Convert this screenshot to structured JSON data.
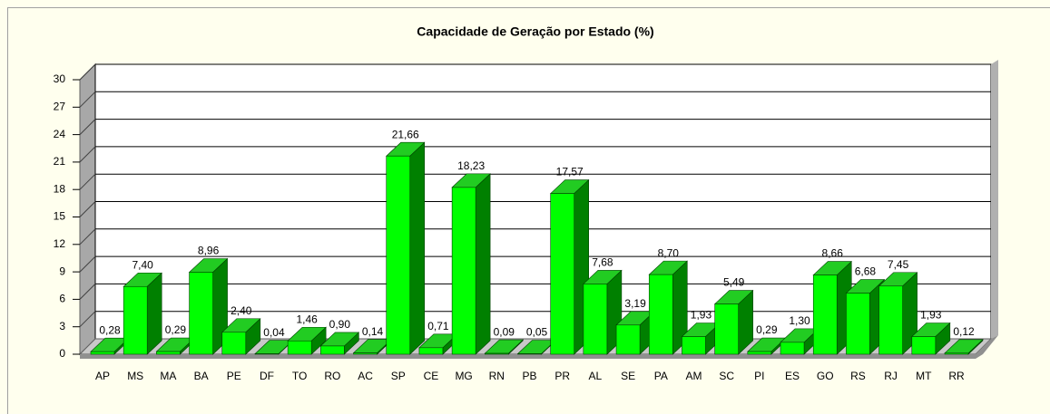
{
  "chart_data": {
    "type": "bar",
    "title": "Capacidade de Geração por Estado (%)",
    "categories": [
      "AP",
      "MS",
      "MA",
      "BA",
      "PE",
      "DF",
      "TO",
      "RO",
      "AC",
      "SP",
      "CE",
      "MG",
      "RN",
      "PB",
      "PR",
      "AL",
      "SE",
      "PA",
      "AM",
      "SC",
      "PI",
      "ES",
      "GO",
      "RS",
      "RJ",
      "MT",
      "RR"
    ],
    "values": [
      0.28,
      7.4,
      0.29,
      8.96,
      2.4,
      0.04,
      1.46,
      0.9,
      0.14,
      21.66,
      0.71,
      18.23,
      0.09,
      0.05,
      17.57,
      7.68,
      3.19,
      8.7,
      1.93,
      5.49,
      0.29,
      1.3,
      8.66,
      6.68,
      7.45,
      1.93,
      0.12
    ],
    "value_labels": [
      "0,28",
      "7,40",
      "0,29",
      "8,96",
      "2,40",
      "0,04",
      "1,46",
      "0,90",
      "0,14",
      "21,66",
      "0,71",
      "18,23",
      "0,09",
      "0,05",
      "17,57",
      "7,68",
      "3,19",
      "8,70",
      "1,93",
      "5,49",
      "0,29",
      "1,30",
      "8,66",
      "6,68",
      "7,45",
      "1,93",
      "0,12"
    ],
    "color": "#00ff00",
    "ylim": [
      0,
      30
    ],
    "yticks": [
      0,
      3,
      6,
      9,
      12,
      15,
      18,
      21,
      24,
      27,
      30
    ],
    "grid": true
  }
}
